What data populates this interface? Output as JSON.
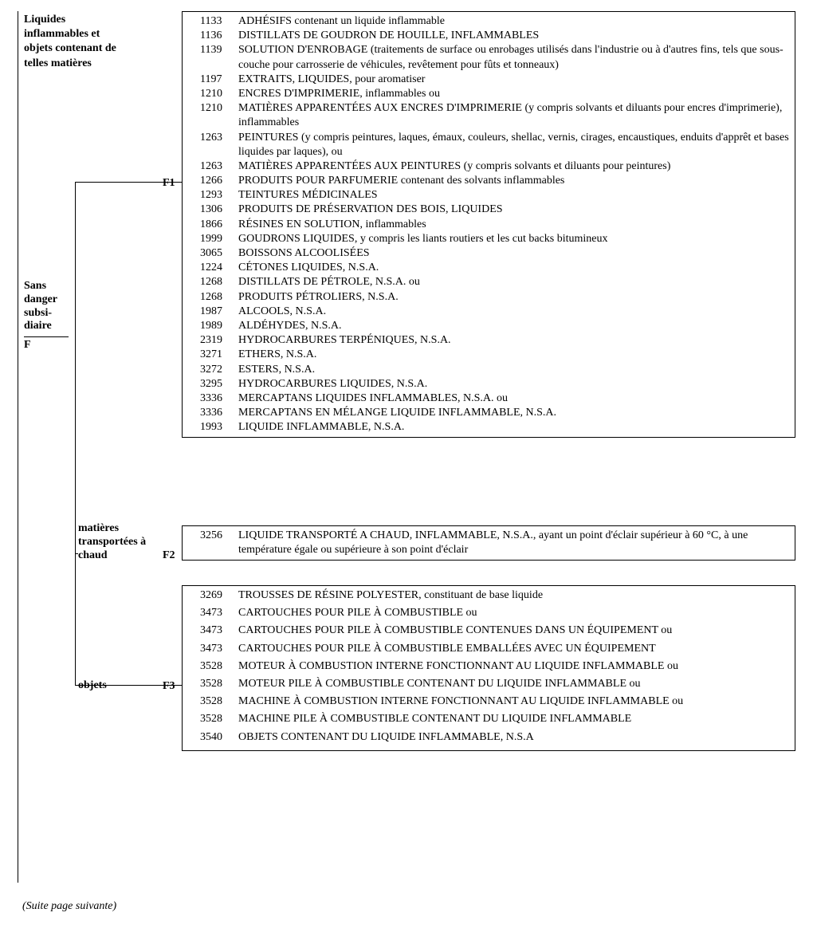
{
  "header": {
    "main_title": "Liquides inflammables et objets contenant de telles matières",
    "sub_title_lines": [
      "Sans",
      "danger",
      "subsi-",
      "diaire"
    ],
    "sub_code": "F"
  },
  "branches": {
    "f1": {
      "code": "F1"
    },
    "f2": {
      "label": "matières transportées à chaud",
      "code": "F2"
    },
    "f3": {
      "label": "objets",
      "code": "F3"
    }
  },
  "boxes": {
    "f1": {
      "rows": [
        {
          "code": "1133",
          "desc": "ADHÉSIFS contenant un liquide inflammable"
        },
        {
          "code": "1136",
          "desc": "DISTILLATS DE GOUDRON DE HOUILLE, INFLAMMABLES"
        },
        {
          "code": "1139",
          "desc": "SOLUTION D'ENROBAGE (traitements de surface ou enrobages utilisés dans l'industrie ou à d'autres fins, tels que sous-couche pour carrosserie de véhicules, revêtement pour fûts et tonneaux)"
        },
        {
          "code": "1197",
          "desc": "EXTRAITS, LIQUIDES, pour aromatiser"
        },
        {
          "code": "1210",
          "desc": "ENCRES D'IMPRIMERIE, inflammables ou"
        },
        {
          "code": "1210",
          "desc": "MATIÈRES APPARENTÉES AUX ENCRES D'IMPRIMERIE (y compris solvants et diluants pour encres d'imprimerie), inflammables"
        },
        {
          "code": "1263",
          "desc": "PEINTURES (y compris peintures, laques, émaux, couleurs, shellac, vernis, cirages, encaustiques, enduits d'apprêt et bases liquides par laques), ou"
        },
        {
          "code": "1263",
          "desc": "MATIÈRES APPARENTÉES AUX PEINTURES (y compris solvants et diluants pour peintures)"
        },
        {
          "code": "1266",
          "desc": "PRODUITS POUR PARFUMERIE contenant des solvants inflammables"
        },
        {
          "code": "1293",
          "desc": "TEINTURES MÉDICINALES"
        },
        {
          "code": "1306",
          "desc": "PRODUITS DE PRÉSERVATION DES BOIS, LIQUIDES"
        },
        {
          "code": "1866",
          "desc": "RÉSINES EN SOLUTION, inflammables"
        },
        {
          "code": "1999",
          "desc": "GOUDRONS LIQUIDES, y compris les liants routiers et les cut backs bitumineux"
        },
        {
          "code": "3065",
          "desc": "BOISSONS ALCOOLISÉES"
        },
        {
          "code": "1224",
          "desc": "CÉTONES LIQUIDES, N.S.A."
        },
        {
          "code": "1268",
          "desc": "DISTILLATS DE PÉTROLE, N.S.A. ou"
        },
        {
          "code": "1268",
          "desc": "PRODUITS PÉTROLIERS, N.S.A."
        },
        {
          "code": "1987",
          "desc": "ALCOOLS, N.S.A."
        },
        {
          "code": "1989",
          "desc": "ALDÉHYDES, N.S.A."
        },
        {
          "code": "2319",
          "desc": "HYDROCARBURES TERPÉNIQUES, N.S.A."
        },
        {
          "code": "3271",
          "desc": "ETHERS, N.S.A."
        },
        {
          "code": "3272",
          "desc": "ESTERS, N.S.A."
        },
        {
          "code": "3295",
          "desc": "HYDROCARBURES LIQUIDES, N.S.A."
        },
        {
          "code": "3336",
          "desc": "MERCAPTANS LIQUIDES INFLAMMABLES, N.S.A. ou"
        },
        {
          "code": "3336",
          "desc": "MERCAPTANS EN MÉLANGE LIQUIDE INFLAMMABLE, N.S.A."
        },
        {
          "code": "1993",
          "desc": "LIQUIDE INFLAMMABLE, N.S.A."
        }
      ]
    },
    "f2": {
      "rows": [
        {
          "code": "3256",
          "desc": "LIQUIDE TRANSPORTÉ A CHAUD, INFLAMMABLE, N.S.A., ayant un point d'éclair supérieur à 60 °C, à une température égale ou supérieure à son point d'éclair"
        }
      ]
    },
    "f3": {
      "rows": [
        {
          "code": "3269",
          "desc": "TROUSSES DE RÉSINE POLYESTER, constituant de base liquide"
        },
        {
          "code": "3473",
          "desc": "CARTOUCHES POUR PILE À COMBUSTIBLE ou"
        },
        {
          "code": "3473",
          "desc": "CARTOUCHES POUR PILE À COMBUSTIBLE CONTENUES DANS UN ÉQUIPEMENT ou"
        },
        {
          "code": "3473",
          "desc": "CARTOUCHES POUR PILE À COMBUSTIBLE EMBALLÉES AVEC UN ÉQUIPEMENT"
        },
        {
          "code": "3528",
          "desc": "MOTEUR À COMBUSTION INTERNE FONCTIONNANT AU LIQUIDE INFLAMMABLE ou"
        },
        {
          "code": "3528",
          "desc": "MOTEUR PILE À COMBUSTIBLE CONTENANT DU LIQUIDE INFLAMMABLE ou"
        },
        {
          "code": "3528",
          "desc": "MACHINE À COMBUSTION INTERNE FONCTIONNANT AU LIQUIDE INFLAMMABLE ou"
        },
        {
          "code": "3528",
          "desc": "MACHINE PILE À COMBUSTIBLE CONTENANT DU LIQUIDE INFLAMMABLE"
        },
        {
          "code": "3540",
          "desc": "OBJETS CONTENANT DU LIQUIDE INFLAMMABLE, N.S.A"
        }
      ]
    }
  },
  "footnote": "(Suite page suivante)"
}
